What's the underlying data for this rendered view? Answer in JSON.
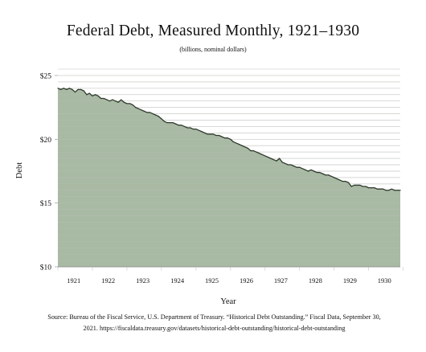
{
  "chart_data": {
    "type": "area",
    "title": "Federal Debt, Measured Monthly, 1921–1930",
    "subtitle": "(billions, nominal dollars)",
    "xlabel": "Year",
    "ylabel": "Debt",
    "x_ticks": [
      "1921",
      "1922",
      "1923",
      "1924",
      "1925",
      "1926",
      "1927",
      "1928",
      "1929",
      "1930"
    ],
    "y_ticks": [
      "$10",
      "$15",
      "$20",
      "$25"
    ],
    "ylim": [
      10,
      25.5
    ],
    "xlim": [
      "1921-01",
      "1930-12"
    ],
    "grid": true,
    "fill_color": "#a3b59f",
    "line_color": "#2f3a2c",
    "series": [
      {
        "x": [
          "1921-01",
          "1921-02",
          "1921-03",
          "1921-04",
          "1921-05",
          "1921-06",
          "1921-07",
          "1921-08",
          "1921-09",
          "1921-10",
          "1921-11",
          "1921-12",
          "1922-01",
          "1922-02",
          "1922-03",
          "1922-04",
          "1922-05",
          "1922-06",
          "1922-07",
          "1922-08",
          "1922-09",
          "1922-10",
          "1922-11",
          "1922-12",
          "1923-01",
          "1923-02",
          "1923-03",
          "1923-04",
          "1923-05",
          "1923-06",
          "1923-07",
          "1923-08",
          "1923-09",
          "1923-10",
          "1923-11",
          "1923-12",
          "1924-01",
          "1924-02",
          "1924-03",
          "1924-04",
          "1924-05",
          "1924-06",
          "1924-07",
          "1924-08",
          "1924-09",
          "1924-10",
          "1924-11",
          "1924-12",
          "1925-01",
          "1925-02",
          "1925-03",
          "1925-04",
          "1925-05",
          "1925-06",
          "1925-07",
          "1925-08",
          "1925-09",
          "1925-10",
          "1925-11",
          "1925-12",
          "1926-01",
          "1926-02",
          "1926-03",
          "1926-04",
          "1926-05",
          "1926-06",
          "1926-07",
          "1926-08",
          "1926-09",
          "1926-10",
          "1926-11",
          "1926-12",
          "1927-01",
          "1927-02",
          "1927-03",
          "1927-04",
          "1927-05",
          "1927-06",
          "1927-07",
          "1927-08",
          "1927-09",
          "1927-10",
          "1927-11",
          "1927-12",
          "1928-01",
          "1928-02",
          "1928-03",
          "1928-04",
          "1928-05",
          "1928-06",
          "1928-07",
          "1928-08",
          "1928-09",
          "1928-10",
          "1928-11",
          "1928-12",
          "1929-01",
          "1929-02",
          "1929-03",
          "1929-04",
          "1929-05",
          "1929-06",
          "1929-07",
          "1929-08",
          "1929-09",
          "1929-10",
          "1929-11",
          "1929-12",
          "1930-01",
          "1930-02",
          "1930-03",
          "1930-04",
          "1930-05",
          "1930-06",
          "1930-07",
          "1930-08",
          "1930-09",
          "1930-10",
          "1930-11",
          "1930-12"
        ],
        "values": [
          24.0,
          23.9,
          24.0,
          23.9,
          24.0,
          23.9,
          23.7,
          23.9,
          23.9,
          23.8,
          23.5,
          23.6,
          23.4,
          23.5,
          23.4,
          23.2,
          23.2,
          23.1,
          23.0,
          23.1,
          23.0,
          22.9,
          23.1,
          22.9,
          22.8,
          22.8,
          22.7,
          22.5,
          22.4,
          22.3,
          22.2,
          22.1,
          22.1,
          22.0,
          21.9,
          21.8,
          21.6,
          21.4,
          21.3,
          21.3,
          21.3,
          21.2,
          21.1,
          21.1,
          21.0,
          20.9,
          20.9,
          20.8,
          20.8,
          20.7,
          20.6,
          20.5,
          20.4,
          20.4,
          20.4,
          20.3,
          20.3,
          20.2,
          20.1,
          20.1,
          20.0,
          19.8,
          19.7,
          19.6,
          19.5,
          19.4,
          19.3,
          19.1,
          19.1,
          19.0,
          18.9,
          18.8,
          18.7,
          18.6,
          18.5,
          18.4,
          18.3,
          18.5,
          18.2,
          18.1,
          18.0,
          18.0,
          17.9,
          17.8,
          17.8,
          17.7,
          17.6,
          17.5,
          17.6,
          17.5,
          17.4,
          17.4,
          17.3,
          17.2,
          17.2,
          17.1,
          17.0,
          16.9,
          16.8,
          16.7,
          16.7,
          16.6,
          16.3,
          16.4,
          16.4,
          16.4,
          16.3,
          16.3,
          16.2,
          16.2,
          16.2,
          16.1,
          16.1,
          16.1,
          16.0,
          16.0,
          16.1,
          16.0,
          16.0,
          16.0
        ]
      }
    ]
  },
  "source": {
    "line1": "Source: Bureau of the Fiscal Service, U.S. Department of Treasury. “Historical Debt Outstanding.” Fiscal Data, September 30,",
    "line2": "2021. https://fiscaldata.treasury.gov/datasets/historical-debt-outstanding/historical-debt-outstanding"
  }
}
